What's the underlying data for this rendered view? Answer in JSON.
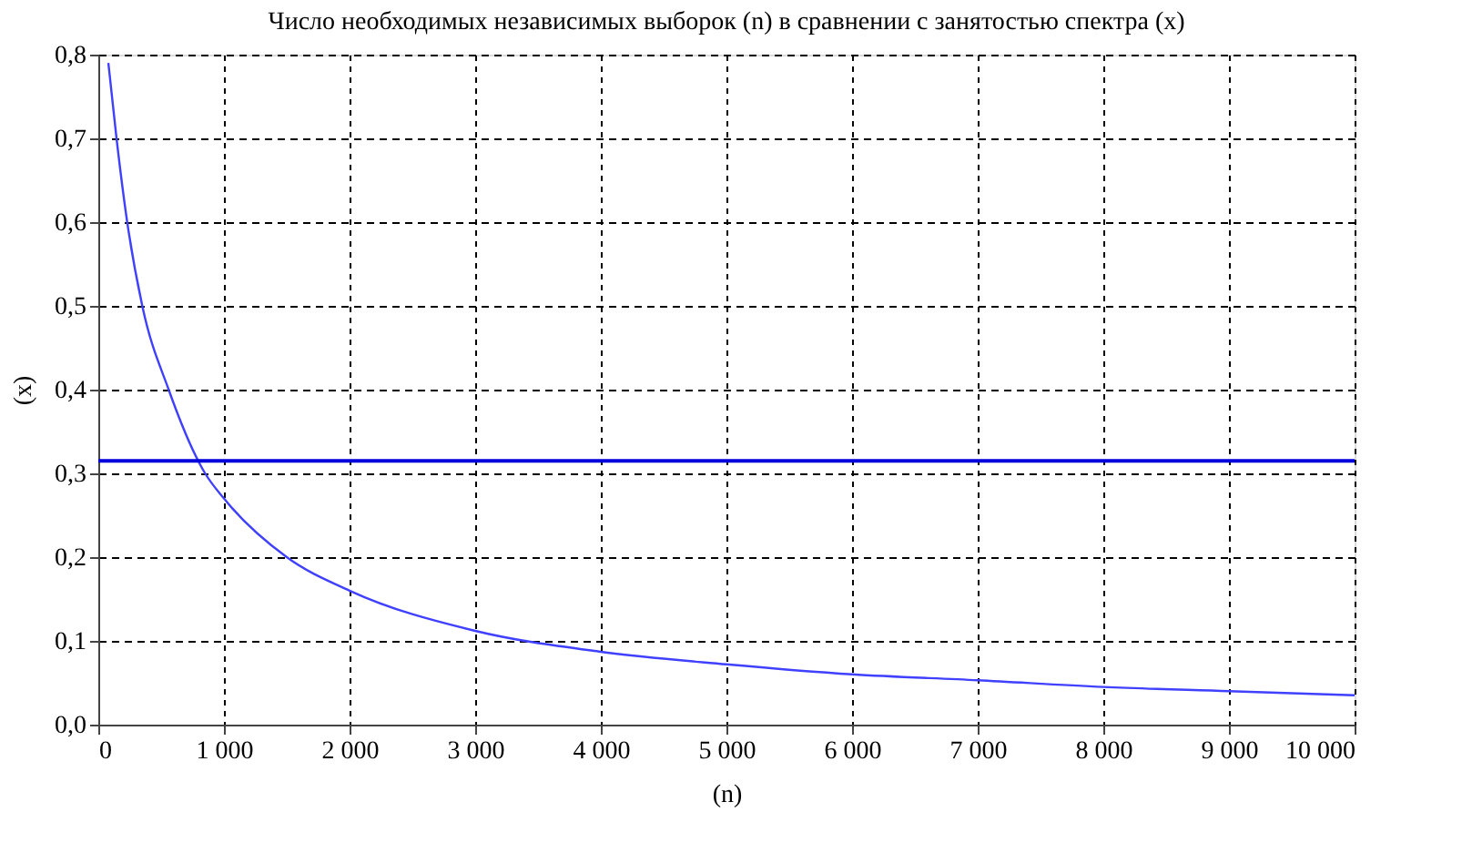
{
  "chart_data": {
    "type": "line",
    "title": "Число необходимых независимых выборок (n) в сравнении с занятостью спектра (x)",
    "xlabel": "(n)",
    "ylabel": "(x)",
    "series": [
      {
        "color": "#4040ff",
        "x": [
          80,
          145,
          230,
          350,
          560,
          850,
          1000,
          1500,
          2000,
          3000,
          4000,
          5000,
          6000,
          7000,
          8000,
          9000,
          10000
        ],
        "values": [
          0.79,
          0.7,
          0.6,
          0.5,
          0.4,
          0.3,
          0.27,
          0.2,
          0.16,
          0.112,
          0.087,
          0.072,
          0.06,
          0.053,
          0.045,
          0.04,
          0.035
        ]
      }
    ],
    "xlim": [
      0,
      10000
    ],
    "ylim": [
      0,
      0.8
    ],
    "xticks": [
      {
        "value": 0,
        "label": "0"
      },
      {
        "value": 1000,
        "label": "1 000"
      },
      {
        "value": 2000,
        "label": "2 000"
      },
      {
        "value": 3000,
        "label": "3 000"
      },
      {
        "value": 4000,
        "label": "4 000"
      },
      {
        "value": 5000,
        "label": "5 000"
      },
      {
        "value": 6000,
        "label": "6 000"
      },
      {
        "value": 7000,
        "label": "7 000"
      },
      {
        "value": 8000,
        "label": "8 000"
      },
      {
        "value": 9000,
        "label": "9 000"
      },
      {
        "value": 10000,
        "label": "10 000"
      }
    ],
    "yticks": [
      {
        "value": 0,
        "label": "0,0"
      },
      {
        "value": 0.1,
        "label": "0,1"
      },
      {
        "value": 0.2,
        "label": "0,2"
      },
      {
        "value": 0.3,
        "label": "0,3"
      },
      {
        "value": 0.4,
        "label": "0,4"
      },
      {
        "value": 0.5,
        "label": "0,5"
      },
      {
        "value": 0.6,
        "label": "0,6"
      },
      {
        "value": 0.7,
        "label": "0,7"
      },
      {
        "value": 0.8,
        "label": "0,8"
      }
    ],
    "ref_lines": [
      {
        "axis": "y",
        "value": 0.315,
        "color": "#0000dd"
      }
    ],
    "grid": true,
    "marker": "none",
    "line_style": "solid"
  }
}
